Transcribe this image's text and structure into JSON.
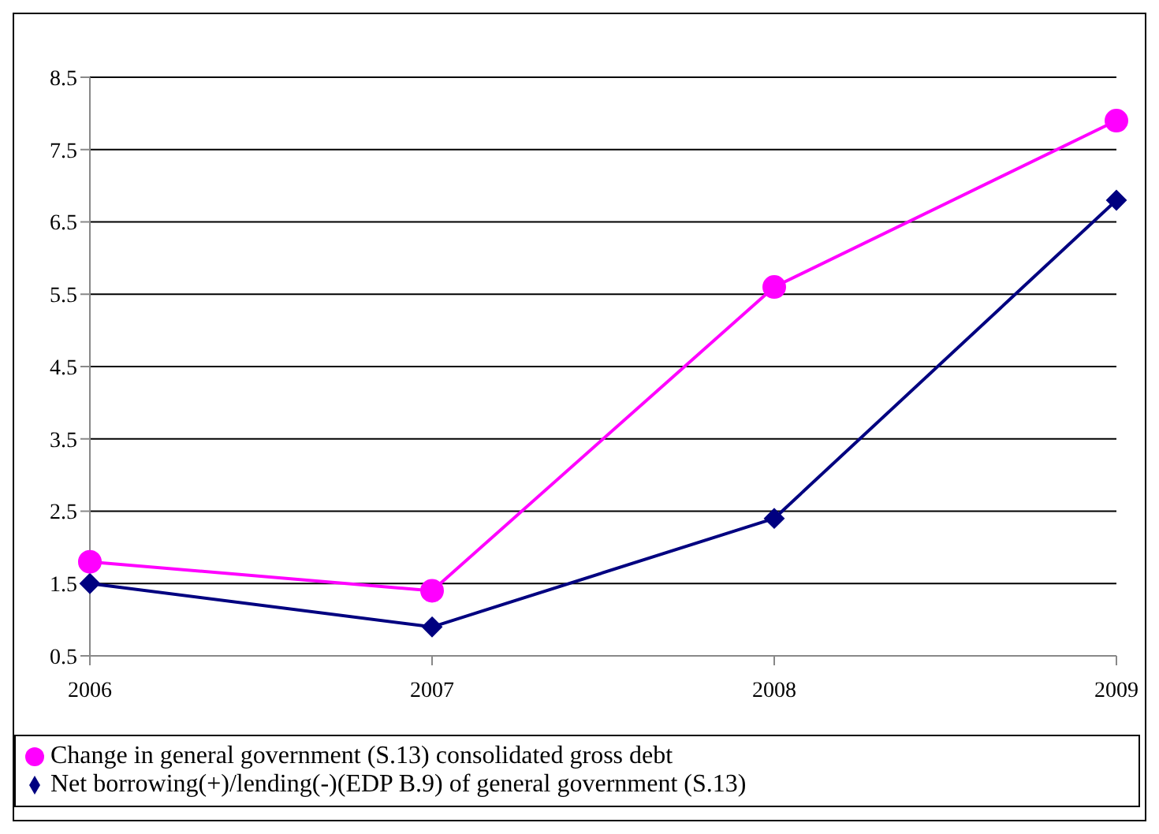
{
  "chart_data": {
    "type": "line",
    "categories": [
      "2006",
      "2007",
      "2008",
      "2009"
    ],
    "series": [
      {
        "name": "Net borrowing(+)/lending(-)(EDP B.9) of general government (S.13)",
        "color": "#000080",
        "marker": "diamond",
        "values": [
          1.5,
          0.9,
          2.4,
          6.8
        ]
      },
      {
        "name": "Change in general government (S.13) consolidated gross debt",
        "color": "#ff00ff",
        "marker": "circle",
        "values": [
          1.8,
          1.4,
          5.6,
          7.9
        ]
      }
    ],
    "ylim": [
      0.5,
      8.5
    ],
    "yticks": [
      0.5,
      1.5,
      2.5,
      3.5,
      4.5,
      5.5,
      6.5,
      7.5,
      8.5
    ],
    "grid": "y",
    "legend": "bottom"
  }
}
